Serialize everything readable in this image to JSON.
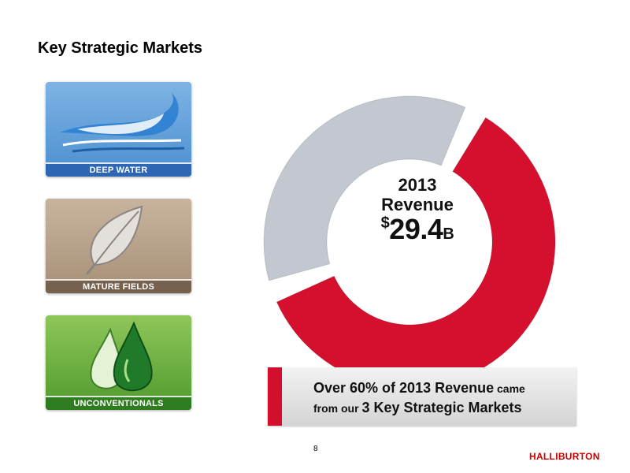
{
  "slide": {
    "title": "Key Strategic Markets",
    "page_number": "8",
    "logo_text": "HALLIBURTON"
  },
  "tiles": [
    {
      "label": "DEEP WATER",
      "icon": "wave-icon"
    },
    {
      "label": "MATURE FIELDS",
      "icon": "leaf-icon"
    },
    {
      "label": "UNCONVENTIONALS",
      "icon": "droplets-icon"
    }
  ],
  "chart_data": {
    "type": "pie",
    "title": "",
    "center_text": {
      "year": "2013",
      "label": "Revenue",
      "currency": "$",
      "value": "29.4",
      "unit": "B"
    },
    "values": [
      62,
      38
    ],
    "colors": [
      "#d5102f",
      "#c3c8d0"
    ]
  },
  "callout": {
    "line1_big": "Over 60% of 2013 Revenue",
    "line1_small": "came",
    "line2_small": "from our",
    "line2_big": "3 Key Strategic Markets"
  },
  "colors": {
    "accent_red": "#d2102e",
    "brand_red": "#cc0000"
  }
}
